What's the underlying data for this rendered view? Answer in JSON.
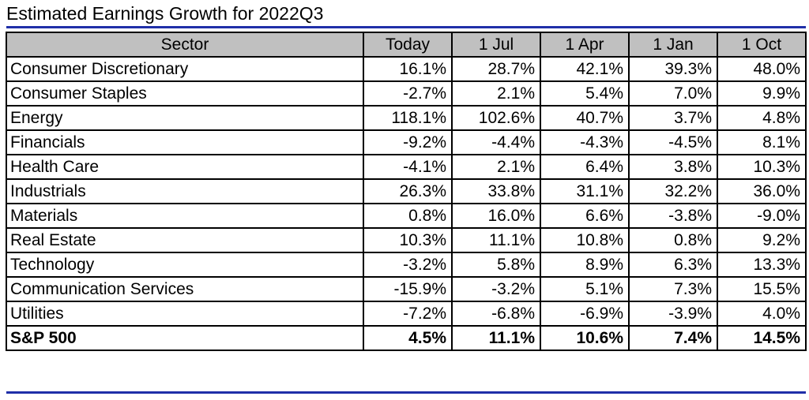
{
  "chart_data": {
    "type": "table",
    "title": "Estimated Earnings Growth for 2022Q3",
    "columns": [
      "Sector",
      "Today",
      "1 Jul",
      "1 Apr",
      "1 Jan",
      "1 Oct"
    ],
    "rows": [
      {
        "sector": "Consumer Discretionary",
        "values": [
          "16.1%",
          "28.7%",
          "42.1%",
          "39.3%",
          "48.0%"
        ]
      },
      {
        "sector": "Consumer Staples",
        "values": [
          "-2.7%",
          "2.1%",
          "5.4%",
          "7.0%",
          "9.9%"
        ]
      },
      {
        "sector": "Energy",
        "values": [
          "118.1%",
          "102.6%",
          "40.7%",
          "3.7%",
          "4.8%"
        ]
      },
      {
        "sector": "Financials",
        "values": [
          "-9.2%",
          "-4.4%",
          "-4.3%",
          "-4.5%",
          "8.1%"
        ]
      },
      {
        "sector": "Health Care",
        "values": [
          "-4.1%",
          "2.1%",
          "6.4%",
          "3.8%",
          "10.3%"
        ]
      },
      {
        "sector": "Industrials",
        "values": [
          "26.3%",
          "33.8%",
          "31.1%",
          "32.2%",
          "36.0%"
        ]
      },
      {
        "sector": "Materials",
        "values": [
          "0.8%",
          "16.0%",
          "6.6%",
          "-3.8%",
          "-9.0%"
        ]
      },
      {
        "sector": "Real Estate",
        "values": [
          "10.3%",
          "11.1%",
          "10.8%",
          "0.8%",
          "9.2%"
        ]
      },
      {
        "sector": "Technology",
        "values": [
          "-3.2%",
          "5.8%",
          "8.9%",
          "6.3%",
          "13.3%"
        ]
      },
      {
        "sector": "Communication Services",
        "values": [
          "-15.9%",
          "-3.2%",
          "5.1%",
          "7.3%",
          "15.5%"
        ]
      },
      {
        "sector": "Utilities",
        "values": [
          "-7.2%",
          "-6.8%",
          "-6.9%",
          "-3.9%",
          "4.0%"
        ]
      },
      {
        "sector": "S&P 500",
        "values": [
          "4.5%",
          "11.1%",
          "10.6%",
          "7.4%",
          "14.5%"
        ],
        "bold": true
      }
    ]
  },
  "colors": {
    "header_bg": "#c0c0c0",
    "rule": "#1f2fa8",
    "border": "#000000"
  }
}
